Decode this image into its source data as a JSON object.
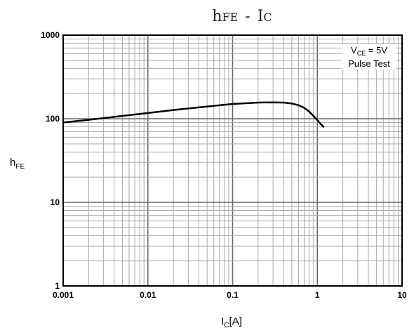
{
  "chart_data": {
    "type": "line",
    "title": {
      "main": "h",
      "sub1": "FE",
      "dash": "-",
      "main2": "I",
      "sub2": "C"
    },
    "xlabel": {
      "main": "I",
      "sub": "C",
      "suffix": "[A]"
    },
    "ylabel": {
      "main": "h",
      "sub": "FE"
    },
    "x_scale": "log",
    "y_scale": "log",
    "xlim": [
      0.001,
      10
    ],
    "ylim": [
      1,
      1000
    ],
    "x_ticks": [
      "0.001",
      "0.01",
      "0.1",
      "1",
      "10"
    ],
    "y_ticks": [
      "1",
      "10",
      "100",
      "1000"
    ],
    "grid": true,
    "annotation": {
      "line1_main": "V",
      "line1_sub": "CE",
      "line1_rest": " = 5V",
      "line2": "Pulse Test"
    },
    "series": [
      {
        "x": [
          0.001,
          0.002,
          0.005,
          0.01,
          0.02,
          0.05,
          0.1,
          0.2,
          0.3,
          0.4,
          0.5,
          0.6,
          0.7,
          0.8,
          0.9,
          1.0,
          1.1,
          1.2
        ],
        "y": [
          90,
          97,
          108,
          117,
          127,
          140,
          150,
          156,
          157,
          156,
          152,
          145,
          135,
          122,
          108,
          96,
          86,
          79
        ]
      }
    ],
    "colors": {
      "line": "#000000",
      "grid": "#a8a8a8",
      "frame": "#000000"
    }
  }
}
